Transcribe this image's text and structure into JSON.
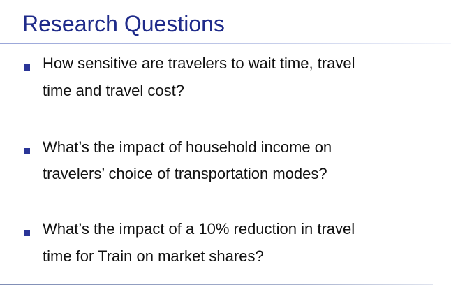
{
  "slide": {
    "title": "Research Questions",
    "bullets": [
      {
        "line1": "How sensitive are travelers to wait time, travel",
        "line2": "time and travel cost?"
      },
      {
        "line1": "What’s the impact of household income on",
        "line2": "travelers’ choice of transportation modes?"
      },
      {
        "line1": "What’s the impact of a 10% reduction in travel",
        "line2": "time for Train on market shares?"
      }
    ]
  },
  "colors": {
    "title": "#1f2b8a",
    "bullet_marker": "#2a3597",
    "text": "#111111"
  }
}
